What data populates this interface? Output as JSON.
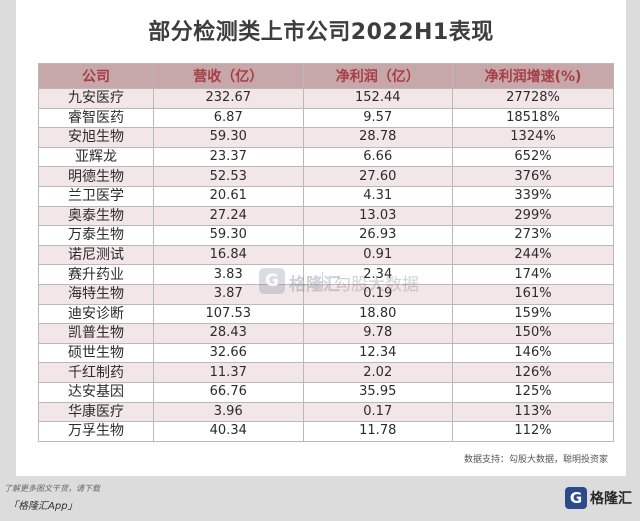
{
  "title": "部分检测类上市公司2022H1表现",
  "table": {
    "headers": [
      "公司",
      "营收（亿）",
      "净利润（亿）",
      "净利润增速(%)"
    ],
    "rows": [
      [
        "九安医疗",
        "232.67",
        "152.44",
        "27728%"
      ],
      [
        "睿智医药",
        "6.87",
        "9.57",
        "18518%"
      ],
      [
        "安旭生物",
        "59.30",
        "28.78",
        "1324%"
      ],
      [
        "亚辉龙",
        "23.37",
        "6.66",
        "652%"
      ],
      [
        "明德生物",
        "52.53",
        "27.60",
        "376%"
      ],
      [
        "兰卫医学",
        "20.61",
        "4.31",
        "339%"
      ],
      [
        "奥泰生物",
        "27.24",
        "13.03",
        "299%"
      ],
      [
        "万泰生物",
        "59.30",
        "26.93",
        "273%"
      ],
      [
        "诺尼测试",
        "16.84",
        "0.91",
        "244%"
      ],
      [
        "赛升药业",
        "3.83",
        "2.34",
        "174%"
      ],
      [
        "海特生物",
        "3.87",
        "0.19",
        "161%"
      ],
      [
        "迪安诊断",
        "107.53",
        "18.80",
        "159%"
      ],
      [
        "凯普生物",
        "28.43",
        "9.78",
        "150%"
      ],
      [
        "硕世生物",
        "32.66",
        "12.34",
        "146%"
      ],
      [
        "千红制药",
        "11.37",
        "2.02",
        "126%"
      ],
      [
        "达安基因",
        "66.76",
        "35.95",
        "125%"
      ],
      [
        "华康医疗",
        "3.96",
        "0.17",
        "113%"
      ],
      [
        "万孚生物",
        "40.34",
        "11.78",
        "112%"
      ]
    ]
  },
  "source": "数据支持：勾股大数据，聪明投资家",
  "watermark": {
    "badge": "G",
    "brand": "格隆汇",
    "sub": "勾股大数据"
  },
  "footer": {
    "line1": "了解更多图文干货，请下载",
    "line2": "「格隆汇App」",
    "logo_mark": "G",
    "logo_text": "格隆汇"
  },
  "colors": {
    "header_bg": "#c8a7aa",
    "header_text": "#a53f46",
    "row_stripe": "#f3e6e7",
    "logo": "#2a4a8c"
  }
}
